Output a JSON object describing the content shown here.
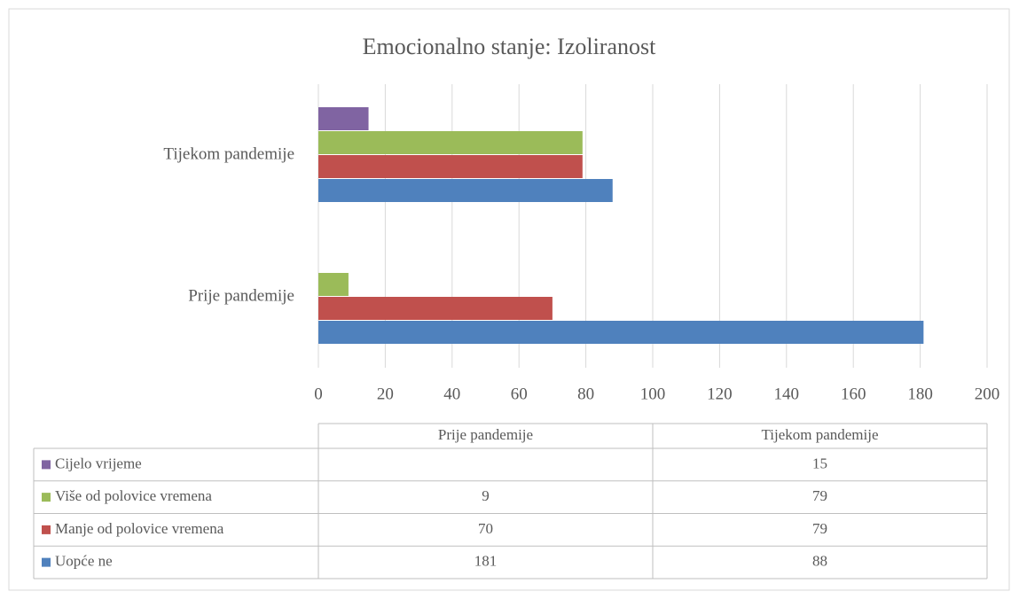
{
  "chart_data": {
    "type": "bar",
    "orientation": "horizontal",
    "title": "Emocionalno stanje: Izoliranost",
    "categories": [
      "Prije pandemije",
      "Tijekom pandemije"
    ],
    "series": [
      {
        "name": "Uopće ne",
        "color": "#4f81bd",
        "values": [
          181,
          88
        ]
      },
      {
        "name": "Manje od polovice vremena",
        "color": "#c0504d",
        "values": [
          70,
          79
        ]
      },
      {
        "name": "Više od polovice vremena",
        "color": "#9bbb59",
        "values": [
          9,
          79
        ]
      },
      {
        "name": "Cijelo vrijeme",
        "color": "#8064a2",
        "values": [
          null,
          15
        ]
      }
    ],
    "xlim": [
      0,
      200
    ],
    "xticks": [
      0,
      20,
      40,
      60,
      80,
      100,
      120,
      140,
      160,
      180,
      200
    ],
    "grid": true,
    "data_table": true
  }
}
